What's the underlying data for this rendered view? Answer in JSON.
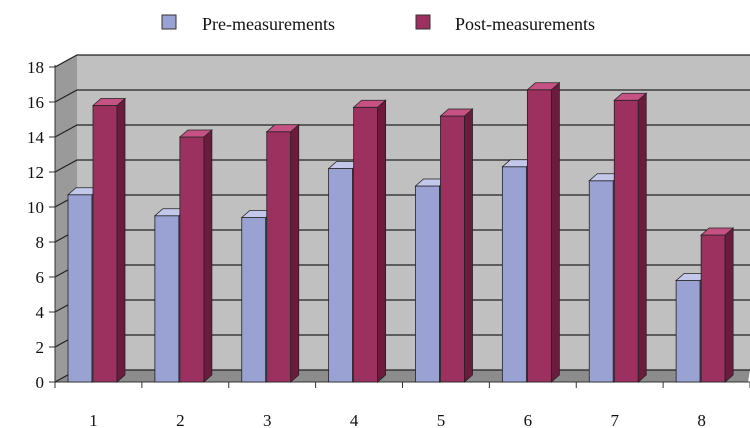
{
  "chart_data": {
    "type": "bar",
    "categories": [
      "1",
      "2",
      "3",
      "4",
      "5",
      "6",
      "7",
      "8"
    ],
    "series": [
      {
        "name": "Pre-measurements",
        "values": [
          10.7,
          9.5,
          9.4,
          12.2,
          11.2,
          12.3,
          11.5,
          5.8
        ]
      },
      {
        "name": "Post-measurements",
        "values": [
          15.8,
          14.0,
          14.3,
          15.7,
          15.2,
          16.7,
          16.1,
          8.4
        ]
      }
    ],
    "ylim": [
      0,
      18
    ],
    "yticks": [
      "0",
      "2",
      "4",
      "6",
      "8",
      "10",
      "12",
      "14",
      "16",
      "18"
    ],
    "grid": true,
    "legend_position": "top",
    "style": "3d-clustered-column",
    "colors": {
      "pre_front": "#9aa2d4",
      "pre_side": "#6f76ad",
      "pre_top": "#c3c8ea",
      "post_front": "#9c305f",
      "post_side": "#6b1c3d",
      "post_top": "#c65283",
      "wall": "#c0c0c0",
      "wall_side": "#9a9a9a",
      "floor": "#8c8c8c",
      "grid": "#222222"
    }
  }
}
